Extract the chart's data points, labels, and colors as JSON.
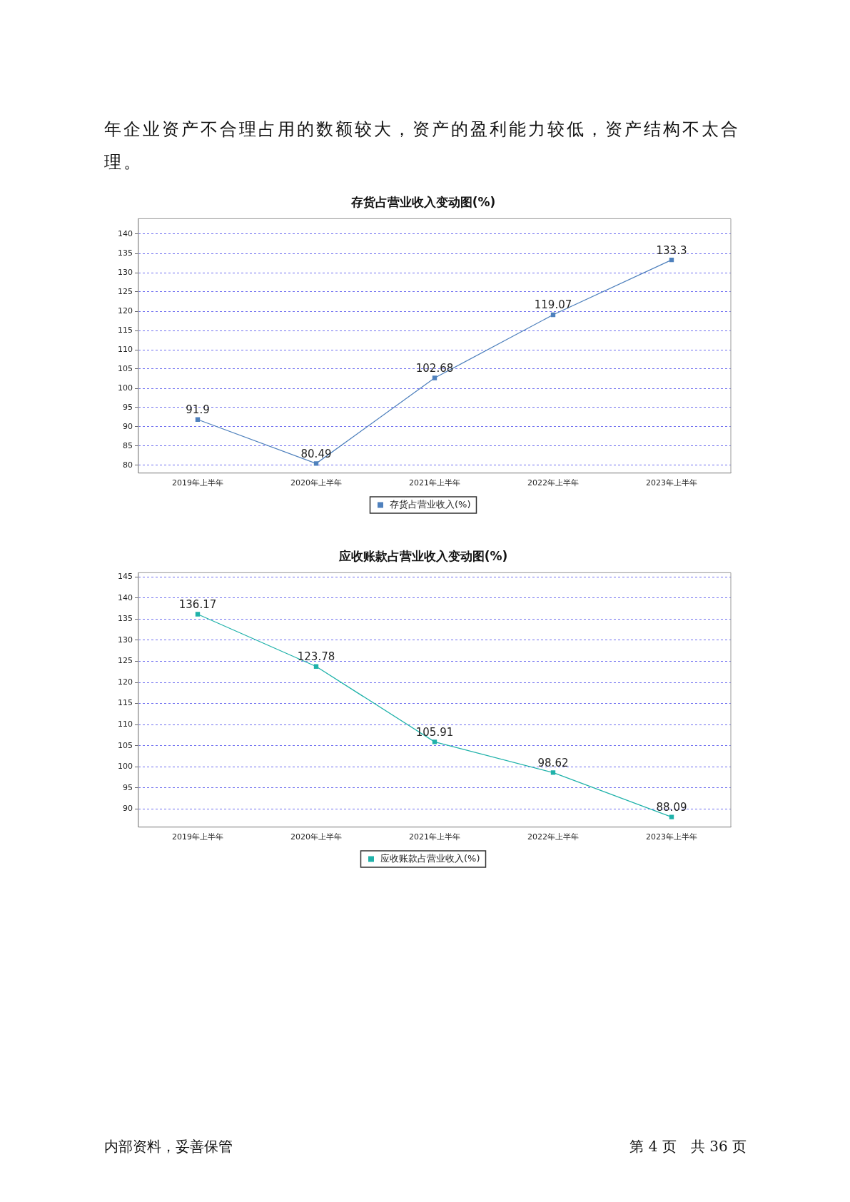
{
  "chart_data": [
    {
      "type": "line",
      "title": "存货占营业收入变动图(%)",
      "annotations": [
        "年企业资产不合理占用的数额较大，资产的盈利能力较低，资产结构不太合理。"
      ],
      "categories": [
        "2019年上半年",
        "2020年上半年",
        "2021年上半年",
        "2022年上半年",
        "2023年上半年"
      ],
      "series": [
        {
          "name": "存货占营业收入(%)",
          "color": "#4f81bd",
          "values": [
            91.9,
            80.49,
            102.68,
            119.07,
            133.3
          ]
        }
      ],
      "ylim": [
        78,
        144
      ],
      "yticks": [
        80,
        85,
        90,
        95,
        100,
        105,
        110,
        115,
        120,
        125,
        130,
        135,
        140
      ],
      "grid": "y",
      "legend": "bottom",
      "marker": "square",
      "line_style": "solid",
      "data_labels": true
    },
    {
      "type": "line",
      "title": "应收账款占营业收入变动图(%)",
      "annotations": [
        "内部资料，妥善保管",
        "第 4 页　共 36 页"
      ],
      "categories": [
        "2019年上半年",
        "2020年上半年",
        "2021年上半年",
        "2022年上半年",
        "2023年上半年"
      ],
      "series": [
        {
          "name": "应收账款占营业收入(%)",
          "color": "#20b2aa",
          "values": [
            136.17,
            123.78,
            105.91,
            98.62,
            88.09
          ]
        }
      ],
      "ylim": [
        85.7,
        146
      ],
      "yticks": [
        90,
        95,
        100,
        105,
        110,
        115,
        120,
        125,
        130,
        135,
        140,
        145
      ],
      "grid": "y",
      "legend": "bottom",
      "marker": "square",
      "line_style": "solid",
      "data_labels": true
    }
  ]
}
